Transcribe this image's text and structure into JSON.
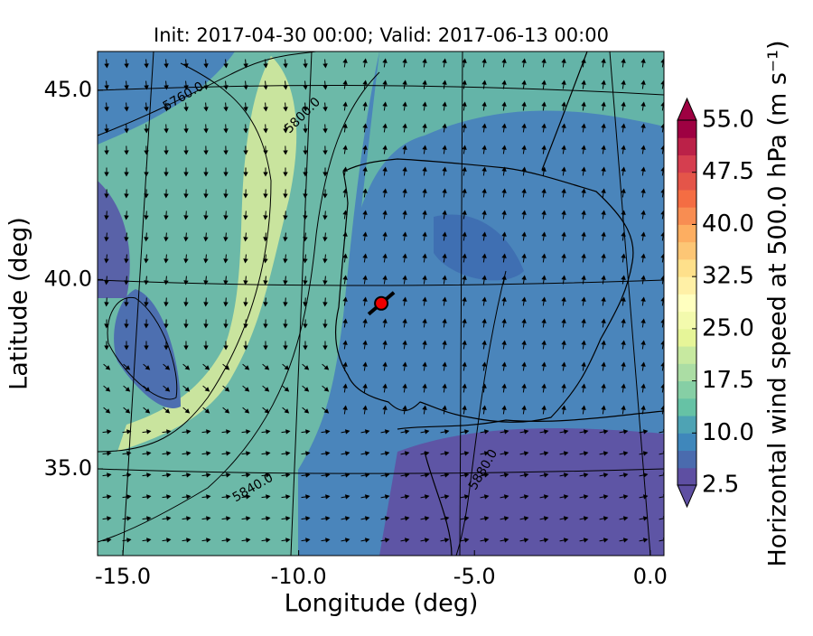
{
  "chart_data": {
    "type": "map",
    "title": "Init: 2017-04-30 00:00; Valid: 2017-06-13 00:00",
    "xlabel": "Longitude (deg)",
    "ylabel": "Latitude (deg)",
    "xlim": [
      -15.72,
      0.39
    ],
    "ylim": [
      32.71,
      46.02
    ],
    "xticks": [
      {
        "value": -15,
        "label": "-15.0"
      },
      {
        "value": -10,
        "label": "-10.0"
      },
      {
        "value": -5,
        "label": "-5.0"
      },
      {
        "value": 0,
        "label": "0.0"
      }
    ],
    "yticks": [
      {
        "value": 35,
        "label": "35.0"
      },
      {
        "value": 40,
        "label": "40.0"
      },
      {
        "value": 45,
        "label": "45.0"
      }
    ],
    "contour_labels": [
      "5760.0",
      "5800.0",
      "5840.0",
      "5880.0"
    ],
    "marker": {
      "x": -7.65,
      "y": 39.37,
      "color": "#ee0000"
    },
    "colorbar": {
      "label": "Horizontal wind speed at 500.0 hPa (m s⁻¹)",
      "lim": [
        2.5,
        55
      ],
      "ticks": [
        2.5,
        {
          "value": 10,
          "label": "10.0"
        },
        17.5,
        {
          "value": 25,
          "label": "25.0"
        },
        32.5,
        {
          "value": 40,
          "label": "40.0"
        },
        47.5,
        {
          "value": 55,
          "label": "55.0"
        }
      ],
      "colors": [
        "#5e4fa2",
        "#4a6bae",
        "#3f87bb",
        "#4ea3b4",
        "#66c2a5",
        "#86cfa5",
        "#abdda4",
        "#c7e9a0",
        "#e6f598",
        "#f3faad",
        "#ffffbf",
        "#fff0a6",
        "#fee08b",
        "#fdc675",
        "#fdae61",
        "#f88d52",
        "#f46d43",
        "#e45549",
        "#d53e4f",
        "#bb2148",
        "#9e0142"
      ]
    }
  }
}
